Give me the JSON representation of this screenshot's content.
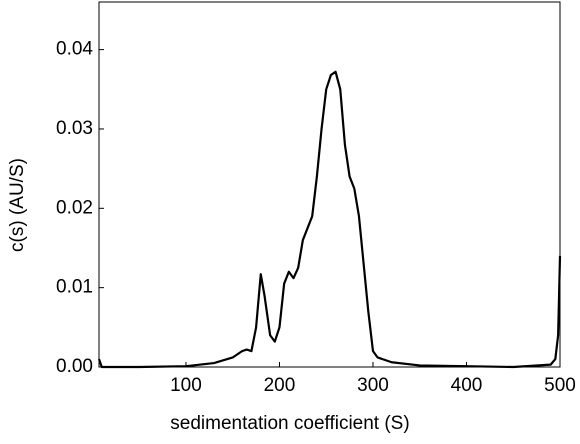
{
  "chart_data": {
    "type": "line",
    "xlabel": "sedimentation coefficient (S)",
    "ylabel": "c(s) (AU/S)",
    "x": [
      7,
      10,
      50,
      100,
      130,
      150,
      160,
      165,
      170,
      175,
      180,
      184,
      190,
      195,
      200,
      205,
      210,
      215,
      220,
      225,
      235,
      240,
      245,
      250,
      255,
      260,
      265,
      270,
      275,
      280,
      285,
      290,
      295,
      300,
      305,
      320,
      350,
      400,
      450,
      490,
      495,
      498,
      500
    ],
    "series": [
      {
        "color": "#000000",
        "values": [
          0.001,
          0,
          0,
          0.0001,
          0.0005,
          0.0012,
          0.002,
          0.0022,
          0.002,
          0.005,
          0.0117,
          0.009,
          0.004,
          0.0032,
          0.005,
          0.0105,
          0.012,
          0.0112,
          0.0125,
          0.016,
          0.019,
          0.024,
          0.03,
          0.035,
          0.0368,
          0.0372,
          0.035,
          0.028,
          0.024,
          0.0225,
          0.019,
          0.013,
          0.007,
          0.002,
          0.0012,
          0.0006,
          0.0002,
          0.0001,
          0,
          0.0003,
          0.001,
          0.004,
          0.014
        ]
      }
    ],
    "xlim": [
      7,
      500
    ],
    "xticks": [
      100,
      200,
      300,
      400,
      500
    ],
    "ylim": [
      0,
      0.046
    ],
    "yticks": [
      {
        "value": 0,
        "label": "0.00"
      },
      0.01,
      0.02,
      0.03,
      0.04
    ],
    "grid": false
  }
}
